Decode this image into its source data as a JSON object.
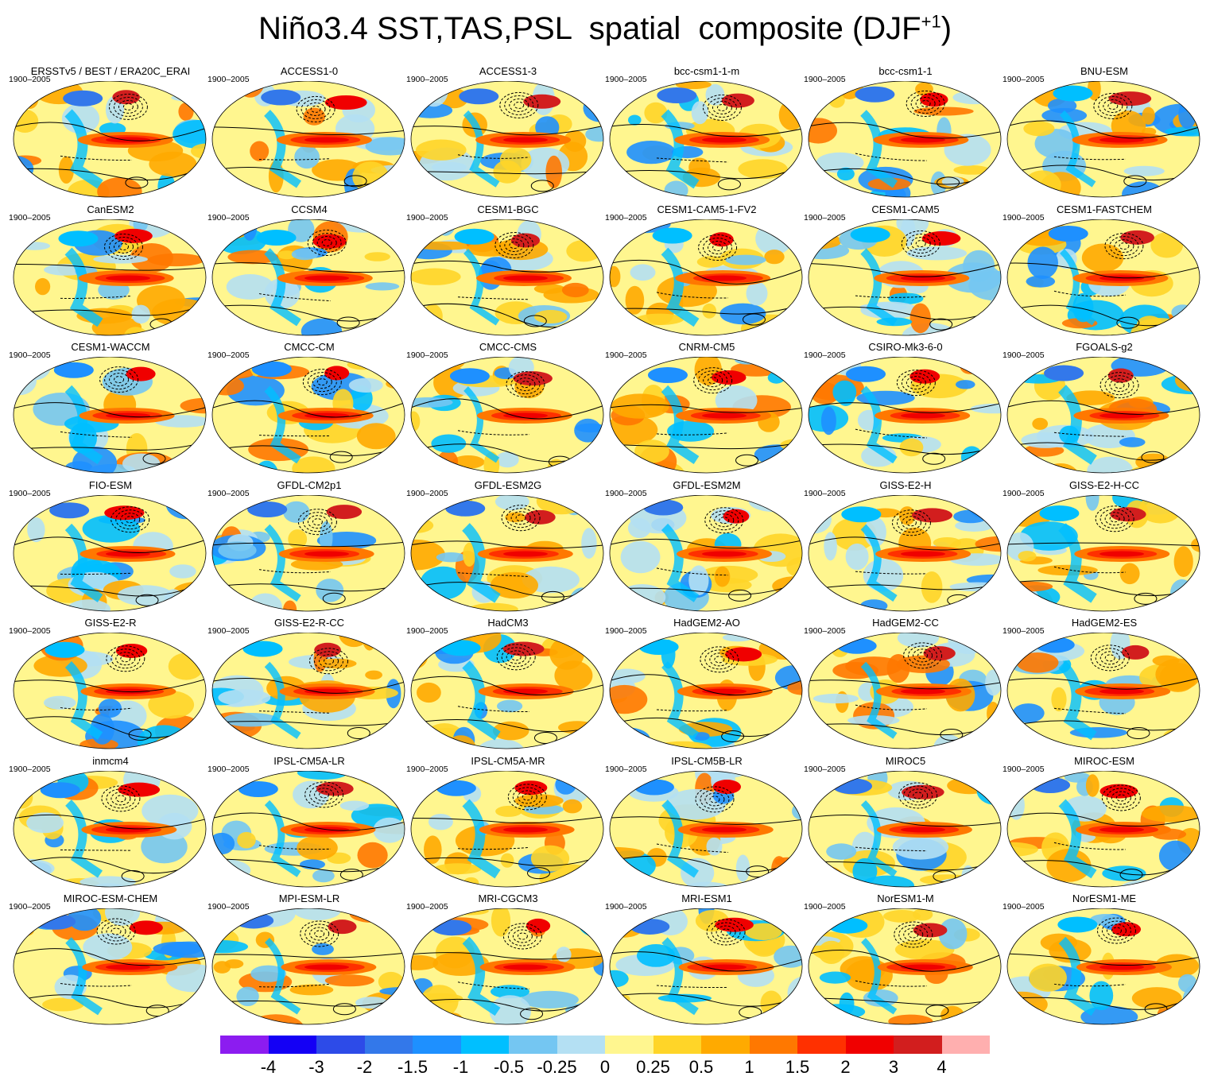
{
  "title": {
    "main": "Niño3.4 SST,TAS,PSL  spatial  composite (DJF",
    "superscript": "+1",
    "close": ")"
  },
  "period": "1900–2005",
  "panels": [
    "ERSSTv5 / BEST / ERA20C_ERAI",
    "ACCESS1-0",
    "ACCESS1-3",
    "bcc-csm1-1-m",
    "bcc-csm1-1",
    "BNU-ESM",
    "CanESM2",
    "CCSM4",
    "CESM1-BGC",
    "CESM1-CAM5-1-FV2",
    "CESM1-CAM5",
    "CESM1-FASTCHEM",
    "CESM1-WACCM",
    "CMCC-CM",
    "CMCC-CMS",
    "CNRM-CM5",
    "CSIRO-Mk3-6-0",
    "FGOALS-g2",
    "FIO-ESM",
    "GFDL-CM2p1",
    "GFDL-ESM2G",
    "GFDL-ESM2M",
    "GISS-E2-H",
    "GISS-E2-H-CC",
    "GISS-E2-R",
    "GISS-E2-R-CC",
    "HadCM3",
    "HadGEM2-AO",
    "HadGEM2-CC",
    "HadGEM2-ES",
    "inmcm4",
    "IPSL-CM5A-LR",
    "IPSL-CM5A-MR",
    "IPSL-CM5B-LR",
    "MIROC5",
    "MIROC-ESM",
    "MIROC-ESM-CHEM",
    "MPI-ESM-LR",
    "MRI-CGCM3",
    "MRI-ESM1",
    "NorESM1-M",
    "NorESM1-ME"
  ],
  "colorbar": {
    "colors": [
      "#8c1cf0",
      "#1400f5",
      "#2d4be8",
      "#3378ea",
      "#1e90ff",
      "#00bfff",
      "#74c6f2",
      "#b4e0f3",
      "#fff68f",
      "#ffd528",
      "#ffaa00",
      "#ff7800",
      "#ff3000",
      "#f00000",
      "#d21e1e",
      "#ffafaf"
    ],
    "labels": [
      "-4",
      "-3",
      "-2",
      "-1.5",
      "-1",
      "-0.5",
      "-0.25",
      "0",
      "0.25",
      "0.5",
      "1",
      "1.5",
      "2",
      "3",
      "4"
    ]
  }
}
